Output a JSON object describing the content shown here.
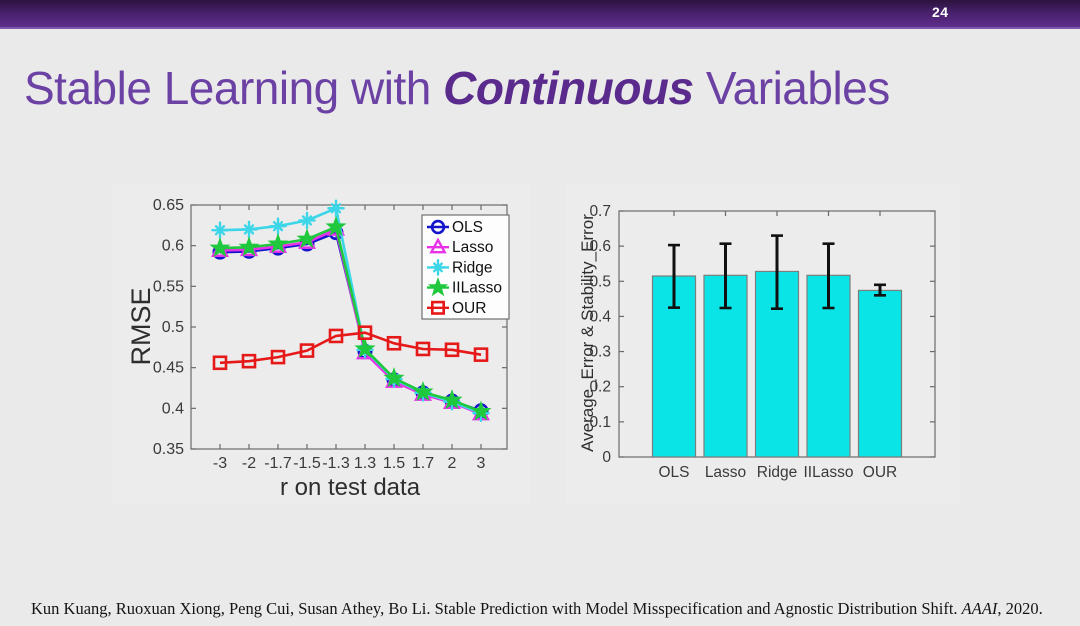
{
  "slide": {
    "page_number": "24",
    "title": {
      "prefix": "Stable Learning with ",
      "emphasis": "Continuous",
      "suffix": " Variables"
    },
    "citation": {
      "prefix": "Kun Kuang, Ruoxuan Xiong, Peng Cui, Susan Athey, Bo Li. Stable Prediction with Model Misspecification and Agnostic Distribution Shift. ",
      "venue": "AAAI",
      "suffix": ", 2020."
    }
  },
  "colors": {
    "slide_background": "#eaeaea",
    "header_purple_dark": "#2c123e",
    "header_purple_light": "#5e2d8c",
    "header_accent_line": "#7e57ac",
    "title_purple": "#6c41a4",
    "title_emphasis_purple": "#5a2b8c",
    "axis_gray": "#6a6a6a",
    "tick_label_gray": "#3a3a3a",
    "ols_blue": "#1414cc",
    "lasso_magenta": "#e832e8",
    "ridge_cyan": "#3cd6e8",
    "iilasso_green": "#1fc83c",
    "our_red": "#e61919",
    "bar_cyan": "#0ae4e6",
    "bar_edge": "#7d7d7d",
    "error_bar_black": "#101010"
  },
  "chart_data": [
    {
      "type": "line",
      "title": "",
      "xlabel": "r on test data",
      "ylabel": "RMSE",
      "x_tick_labels": [
        "-3",
        "-2",
        "-1.7",
        "-1.5",
        "-1.3",
        "1.3",
        "1.5",
        "1.7",
        "2",
        "3"
      ],
      "y_tick_labels": [
        "0.35",
        "0.4",
        "0.45",
        "0.5",
        "0.55",
        "0.6",
        "0.65"
      ],
      "ylim": [
        0.35,
        0.65
      ],
      "grid": false,
      "legend_position": "top-right",
      "series": [
        {
          "name": "OLS",
          "marker": "circle",
          "color": "#1414cc",
          "values": [
            0.592,
            0.593,
            0.597,
            0.602,
            0.616,
            0.47,
            0.435,
            0.419,
            0.409,
            0.397
          ]
        },
        {
          "name": "Lasso",
          "marker": "triangle",
          "color": "#e832e8",
          "values": [
            0.594,
            0.595,
            0.599,
            0.604,
            0.62,
            0.468,
            0.433,
            0.417,
            0.407,
            0.393
          ]
        },
        {
          "name": "Ridge",
          "marker": "asterisk",
          "color": "#3cd6e8",
          "values": [
            0.619,
            0.62,
            0.624,
            0.631,
            0.646,
            0.472,
            0.436,
            0.419,
            0.408,
            0.394
          ]
        },
        {
          "name": "IILasso",
          "marker": "star",
          "color": "#1fc83c",
          "values": [
            0.597,
            0.598,
            0.602,
            0.608,
            0.623,
            0.473,
            0.437,
            0.42,
            0.41,
            0.396
          ]
        },
        {
          "name": "OUR",
          "marker": "square",
          "color": "#e61919",
          "values": [
            0.456,
            0.458,
            0.463,
            0.471,
            0.489,
            0.493,
            0.48,
            0.473,
            0.472,
            0.466
          ]
        }
      ]
    },
    {
      "type": "bar",
      "title": "",
      "xlabel": "",
      "ylabel": "Average_Error & Stability_Error",
      "categories": [
        "OLS",
        "Lasso",
        "Ridge",
        "IILasso",
        "OUR"
      ],
      "values": [
        0.515,
        0.517,
        0.528,
        0.517,
        0.474
      ],
      "error_low": [
        0.425,
        0.424,
        0.422,
        0.424,
        0.46
      ],
      "error_high": [
        0.603,
        0.607,
        0.63,
        0.607,
        0.49
      ],
      "y_tick_labels": [
        "0",
        "0.1",
        "0.2",
        "0.3",
        "0.4",
        "0.5",
        "0.6",
        "0.7"
      ],
      "ylim": [
        0,
        0.7
      ],
      "grid": false,
      "bar_color": "#0ae4e6",
      "bar_edge_color": "#7d7d7d",
      "error_color": "#101010"
    }
  ]
}
